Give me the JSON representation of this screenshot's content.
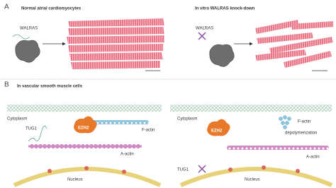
{
  "panel_a": {
    "label": "A",
    "left": {
      "title": "Normal atrial cardiomyocytes",
      "rna_label": "WALRAS"
    },
    "right": {
      "title": "In vitro WALRAS knock-down",
      "rna_label": "WALRAS"
    }
  },
  "panel_b": {
    "label": "B",
    "title": "In vascular smooth muscle cells",
    "left": {
      "cytoplasm": "Cytoplasm",
      "tug1": "TUG1",
      "ezh2": "EZH2",
      "f_actin": "F-actin",
      "a_actin": "A-actin",
      "nucleus": "Nucleus"
    },
    "right": {
      "cytoplasm": "Cytoplasm",
      "ezh2": "EZH2",
      "f_actin_lines": [
        "F-actin",
        "depolymerization"
      ],
      "a_actin": "A-actin",
      "tug1": "TUG1",
      "nucleus": "Nucleus"
    }
  }
}
